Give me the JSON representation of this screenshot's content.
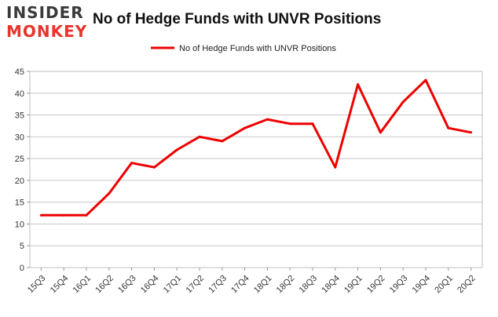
{
  "logo": {
    "line1": "INSIDER",
    "line2": "MONKEY"
  },
  "chart_data": {
    "type": "line",
    "title": "No of Hedge Funds with UNVR Positions",
    "categories": [
      "15Q3",
      "15Q4",
      "16Q1",
      "16Q2",
      "16Q3",
      "16Q4",
      "17Q1",
      "17Q2",
      "17Q3",
      "17Q4",
      "18Q1",
      "18Q2",
      "18Q3",
      "18Q4",
      "19Q1",
      "19Q2",
      "19Q3",
      "19Q4",
      "20Q1",
      "20Q2"
    ],
    "series": [
      {
        "name": "No of Hedge Funds with UNVR Positions",
        "color": "#ee0000",
        "values": [
          12,
          12,
          12,
          17,
          24,
          23,
          27,
          30,
          29,
          32,
          34,
          33,
          33,
          23,
          42,
          31,
          38,
          43,
          32,
          31
        ]
      }
    ],
    "ylim": [
      0,
      45
    ],
    "yticks": [
      0,
      5,
      10,
      15,
      20,
      25,
      30,
      35,
      40,
      45
    ],
    "xlabel": "",
    "ylabel": "",
    "grid": true,
    "legend_position": "top-center"
  }
}
